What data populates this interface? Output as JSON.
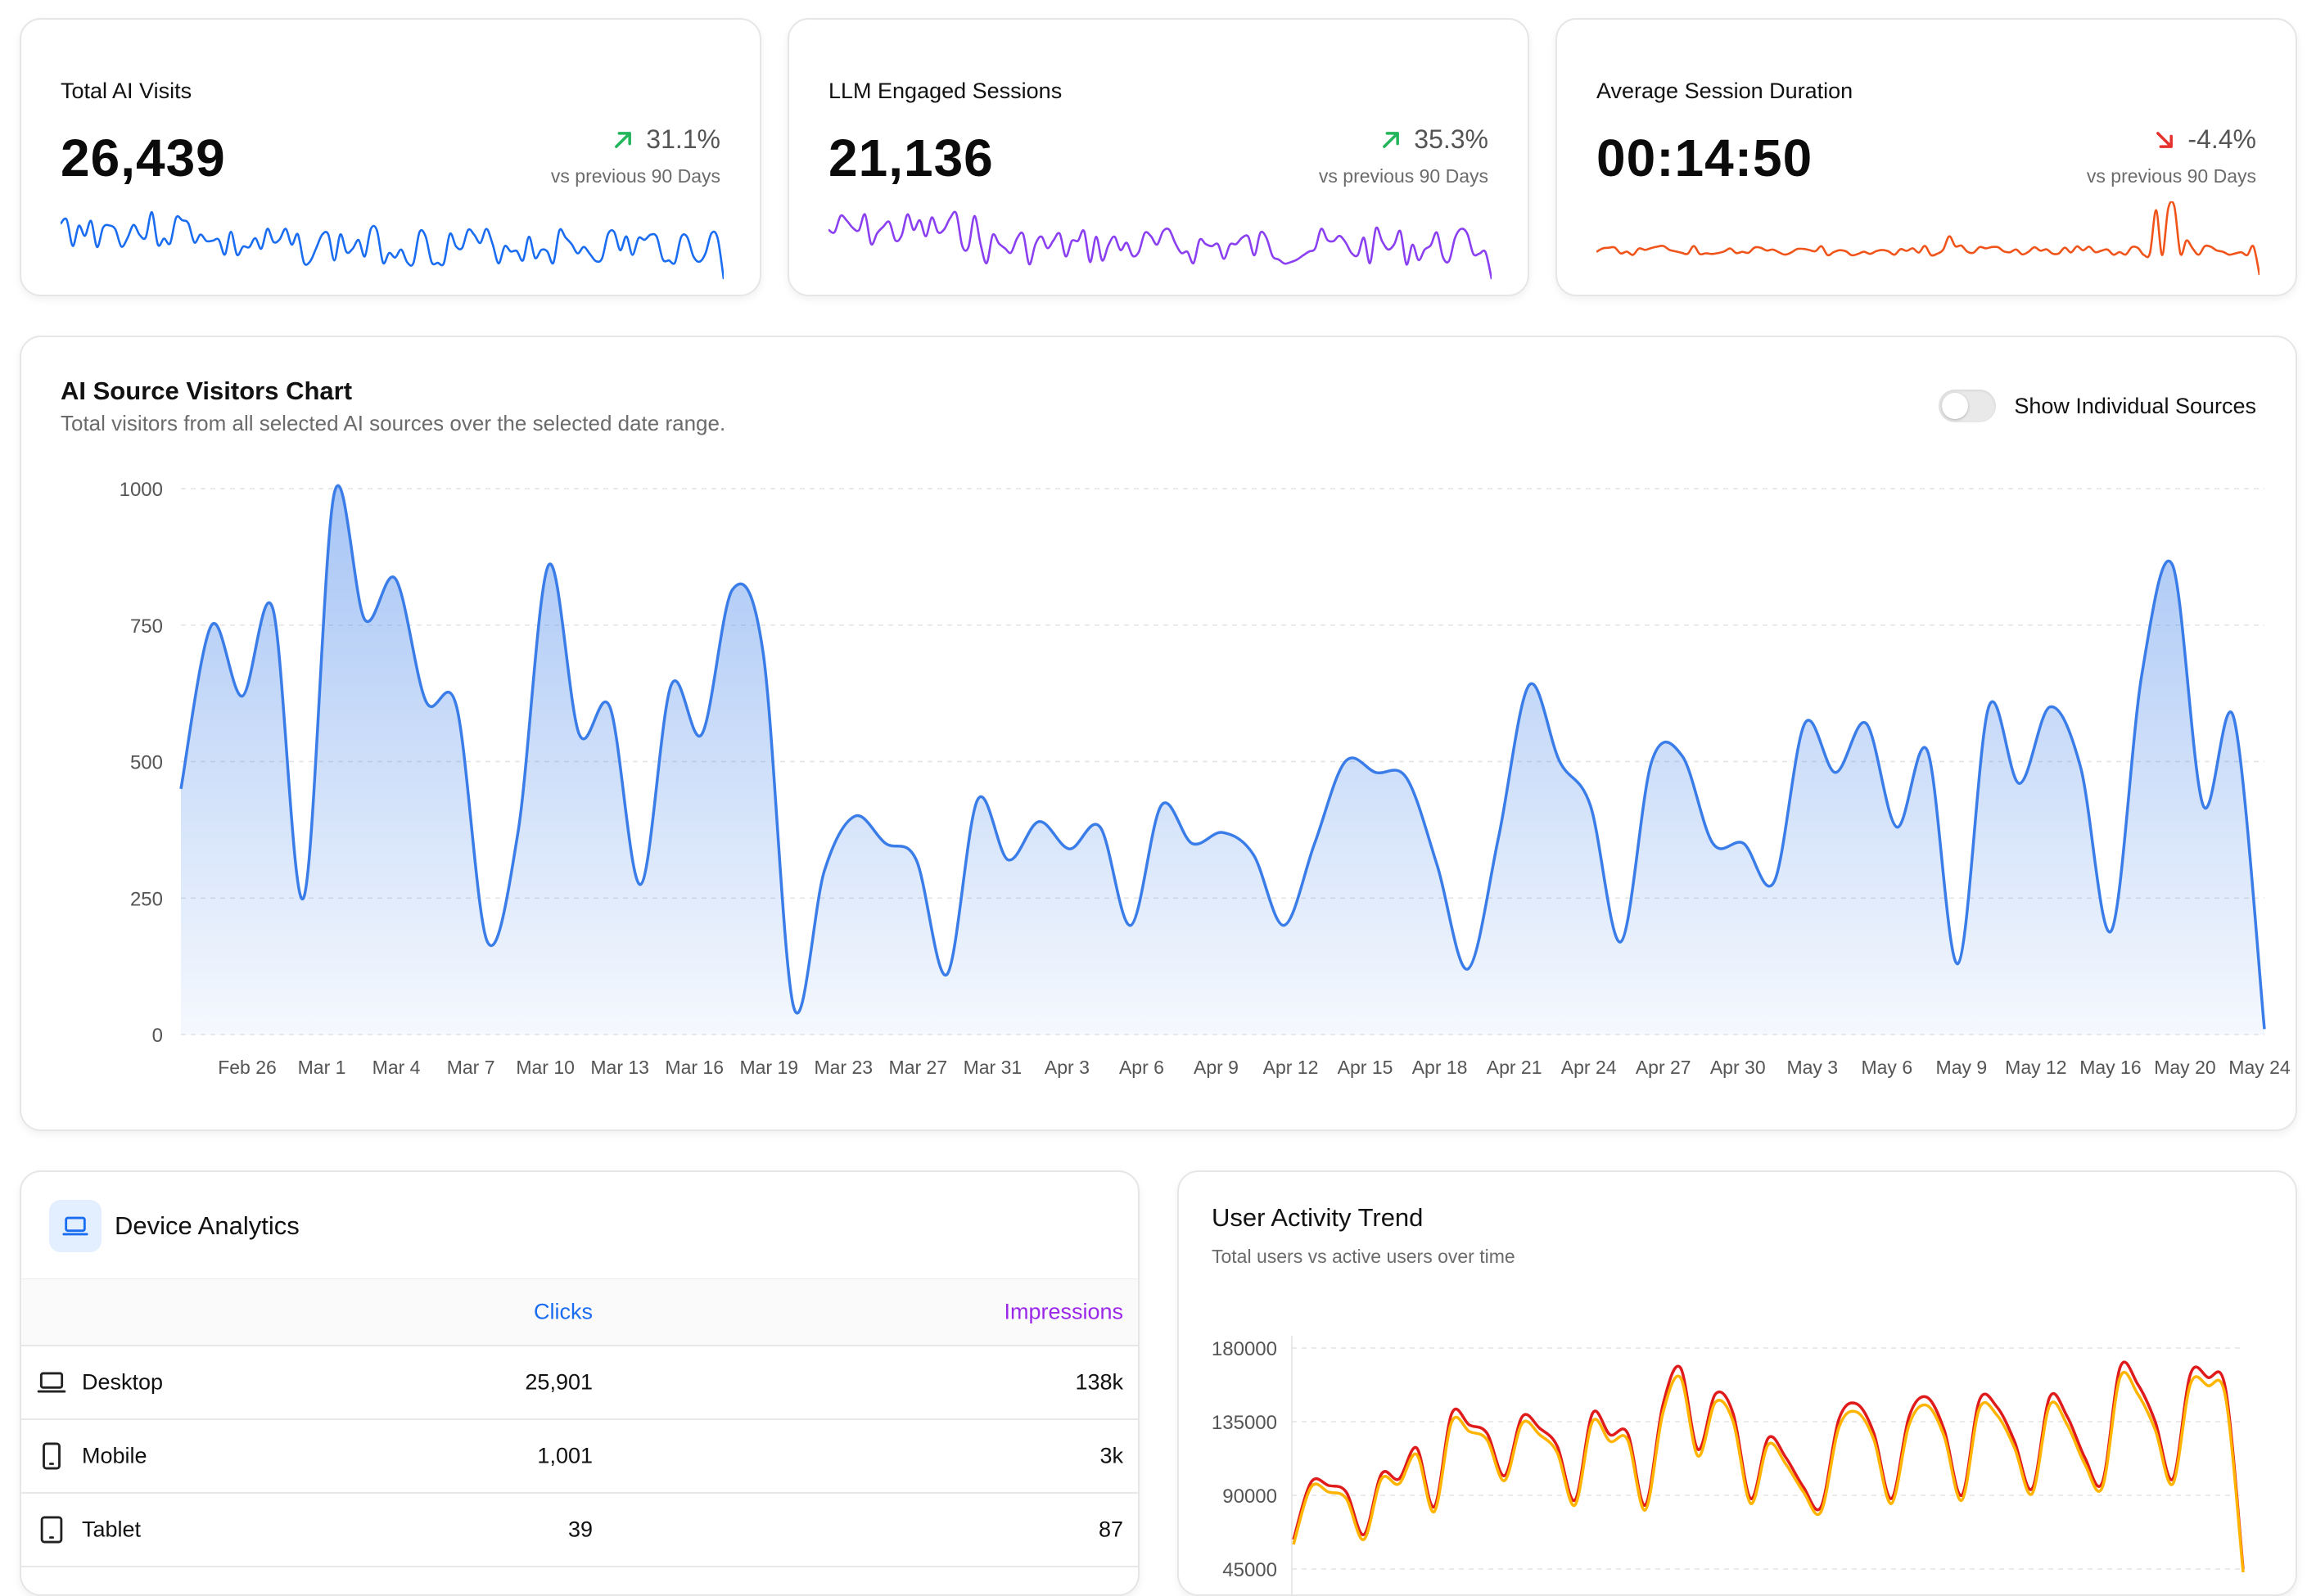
{
  "kpis": [
    {
      "title": "Total AI Visits",
      "value": "26,439",
      "delta": "31.1%",
      "direction": "up",
      "comparison": "vs previous 90 Days",
      "color": "#1a6cf0"
    },
    {
      "title": "LLM Engaged Sessions",
      "value": "21,136",
      "delta": "35.3%",
      "direction": "up",
      "comparison": "vs previous 90 Days",
      "color": "#8a3ff0"
    },
    {
      "title": "Average Session Duration",
      "value": "00:14:50",
      "delta": "-4.4%",
      "direction": "down",
      "comparison": "vs previous 90 Days",
      "color": "#f0541a"
    }
  ],
  "colors": {
    "up": "#22b55a",
    "down": "#e5322d",
    "main_line": "#3a7de8",
    "total_users": "#e01b1b",
    "active_users": "#ffb400"
  },
  "main_chart": {
    "title": "AI Source Visitors Chart",
    "subtitle": "Total visitors from all selected AI sources over the selected date range.",
    "toggle_label": "Show Individual Sources",
    "toggle_on": false
  },
  "device": {
    "title": "Device Analytics",
    "icon": "laptop-icon",
    "headers": {
      "clicks": "Clicks",
      "impressions": "Impressions"
    },
    "rows": [
      {
        "name": "Desktop",
        "icon": "laptop-icon",
        "clicks": "25,901",
        "impressions": "138k"
      },
      {
        "name": "Mobile",
        "icon": "phone-icon",
        "clicks": "1,001",
        "impressions": "3k"
      },
      {
        "name": "Tablet",
        "icon": "tablet-icon",
        "clicks": "39",
        "impressions": "87"
      }
    ]
  },
  "activity": {
    "title": "User Activity Trend",
    "subtitle": "Total users vs active users over time"
  },
  "chart_data": [
    {
      "type": "area",
      "title": "AI Source Visitors Chart",
      "ylim": [
        0,
        1000
      ],
      "yticks": [
        0,
        250,
        500,
        750,
        1000
      ],
      "xticks": [
        "Feb 26",
        "Mar 1",
        "Mar 4",
        "Mar 7",
        "Mar 10",
        "Mar 13",
        "Mar 16",
        "Mar 19",
        "Mar 23",
        "Mar 27",
        "Mar 31",
        "Apr 3",
        "Apr 6",
        "Apr 9",
        "Apr 12",
        "Apr 15",
        "Apr 18",
        "Apr 21",
        "Apr 24",
        "Apr 27",
        "Apr 30",
        "May 3",
        "May 6",
        "May 9",
        "May 12",
        "May 16",
        "May 20",
        "May 24"
      ],
      "grid": true,
      "values": [
        450,
        750,
        620,
        780,
        250,
        990,
        760,
        835,
        610,
        600,
        170,
        370,
        860,
        550,
        600,
        275,
        640,
        550,
        815,
        700,
        50,
        300,
        400,
        350,
        320,
        110,
        430,
        320,
        390,
        340,
        380,
        200,
        420,
        350,
        370,
        330,
        200,
        350,
        500,
        480,
        470,
        310,
        120,
        360,
        640,
        500,
        420,
        170,
        500,
        510,
        350,
        350,
        280,
        570,
        480,
        570,
        380,
        520,
        130,
        600,
        460,
        600,
        490,
        190,
        660,
        860,
        420,
        580,
        10
      ]
    },
    {
      "type": "line",
      "ylim": [
        45000,
        180000
      ],
      "yticks": [
        "45000",
        "90000",
        "135000",
        "180000"
      ],
      "grid": true,
      "series": [
        {
          "name": "",
          "color": "#e01b1b",
          "values": [
            63000,
            98000,
            96000,
            92000,
            66000,
            103000,
            100000,
            119000,
            83000,
            140000,
            133000,
            128000,
            102000,
            138000,
            131000,
            120000,
            87000,
            140000,
            127000,
            128000,
            84000,
            145000,
            168000,
            118000,
            152000,
            140000,
            88000,
            125000,
            113000,
            95000,
            83000,
            136000,
            146000,
            128000,
            88000,
            138000,
            150000,
            130000,
            90000,
            148000,
            144000,
            123000,
            94000,
            150000,
            138000,
            113000,
            98000,
            168000,
            158000,
            135000,
            100000,
            164000,
            162000,
            155000,
            45000
          ]
        },
        {
          "name": "",
          "color": "#ffb400",
          "values": [
            60000,
            95000,
            92000,
            88000,
            63000,
            100000,
            97000,
            115000,
            80000,
            135000,
            129000,
            124000,
            99000,
            134000,
            127000,
            116000,
            84000,
            135000,
            123000,
            124000,
            81000,
            140000,
            162000,
            114000,
            147000,
            135000,
            85000,
            121000,
            109000,
            92000,
            80000,
            131000,
            141000,
            124000,
            85000,
            133000,
            145000,
            126000,
            87000,
            143000,
            139000,
            119000,
            91000,
            145000,
            133000,
            109000,
            95000,
            162000,
            152000,
            130000,
            97000,
            158000,
            157000,
            150000,
            43000
          ]
        }
      ]
    }
  ]
}
